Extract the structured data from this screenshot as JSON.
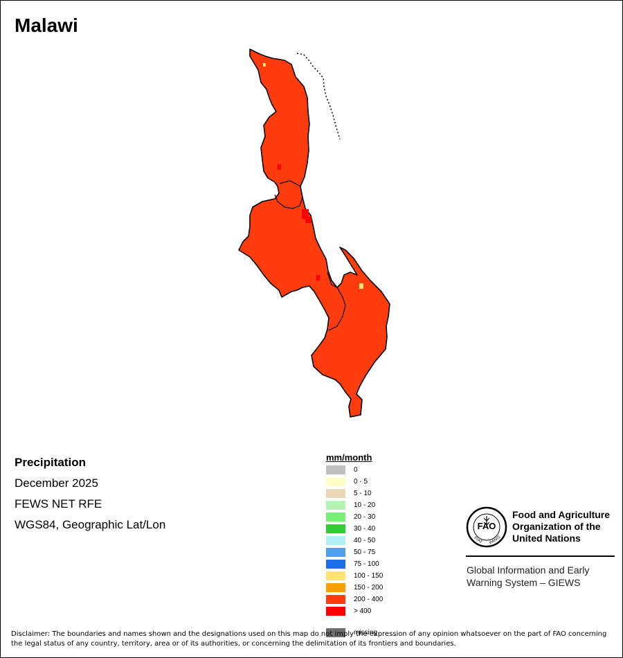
{
  "title": "Malawi",
  "map": {
    "fill_color": "#ff3c0e",
    "outline_color": "#000000",
    "highlight_colors": {
      "greater_than_400": "#ff0000",
      "range_100_150": "#ffe375"
    }
  },
  "info": {
    "variable": "Precipitation",
    "period": "December 2025",
    "source": "FEWS NET RFE",
    "projection": "WGS84, Geographic Lat/Lon"
  },
  "legend": {
    "title": "mm/month",
    "items": [
      {
        "label": "0",
        "color": "#c0c0c0"
      },
      {
        "label": "0 - 5",
        "color": "#ffffc8"
      },
      {
        "label": "5 - 10",
        "color": "#ead7b7"
      },
      {
        "label": "10 - 20",
        "color": "#b4f5b4"
      },
      {
        "label": "20 - 30",
        "color": "#78f078"
      },
      {
        "label": "30 - 40",
        "color": "#32cd32"
      },
      {
        "label": "40 - 50",
        "color": "#b4f0fa"
      },
      {
        "label": "50 - 75",
        "color": "#50a0f0"
      },
      {
        "label": "75 - 100",
        "color": "#1e6eeb"
      },
      {
        "label": "100 - 150",
        "color": "#ffe375"
      },
      {
        "label": "150 - 200",
        "color": "#ffa000"
      },
      {
        "label": "200 - 400",
        "color": "#ff3c0e"
      },
      {
        "label": "> 400",
        "color": "#ff0000"
      },
      {
        "label": "missing",
        "color": "#6e6e6e"
      }
    ]
  },
  "branding": {
    "logo_text": "FAO",
    "logo_motto_left": "FIAT",
    "logo_motto_right": "PANIS",
    "org_name": "Food and Agriculture\nOrganization of the\nUnited Nations",
    "giews": "Global Information and Early\nWarning System – GIEWS"
  },
  "disclaimer": "Disclaimer: The boundaries and names shown and the designations used on this map do not imply the expression of any opinion whatsoever on the part of FAO concerning the legal status of any country, territory, area or of its authorities, or concerning the delimitation of its frontiers and boundaries."
}
